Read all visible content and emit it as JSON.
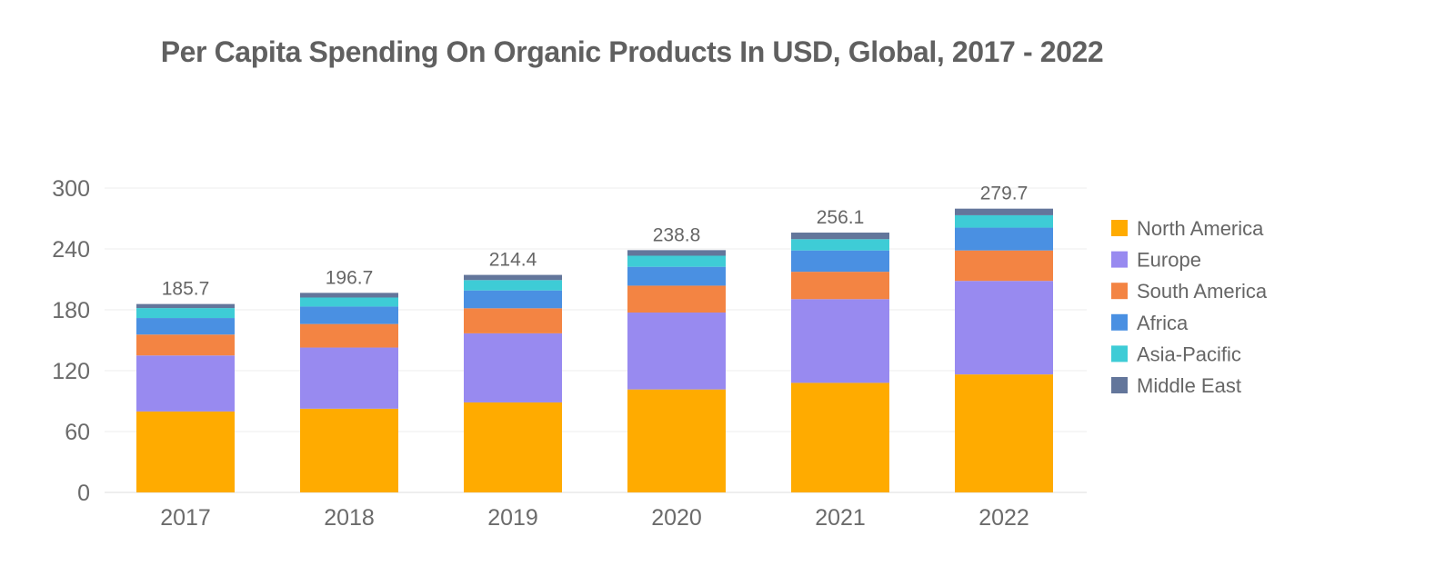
{
  "chart_data": {
    "type": "bar",
    "stacked": true,
    "title": "Per Capita Spending On Organic Products In USD, Global, 2017 - 2022",
    "xlabel": "",
    "ylabel": "",
    "ylim": [
      0,
      300
    ],
    "yticks": [
      "0",
      "60",
      "120",
      "180",
      "240",
      "300"
    ],
    "grid": true,
    "legend_position": "right",
    "categories": [
      "2017",
      "2018",
      "2019",
      "2020",
      "2021",
      "2022"
    ],
    "totals": [
      "185.7",
      "196.7",
      "214.4",
      "238.8",
      "256.1",
      "279.7"
    ],
    "series": [
      {
        "name": "North America",
        "color": "#FFAB00",
        "values": [
          79.8,
          82.5,
          88.7,
          101.5,
          108.0,
          116.3
        ]
      },
      {
        "name": "Europe",
        "color": "#988AF0",
        "values": [
          55.2,
          60.3,
          68.1,
          75.8,
          82.5,
          92.2
        ]
      },
      {
        "name": "South America",
        "color": "#F38443",
        "values": [
          20.6,
          23.2,
          24.7,
          26.5,
          27.0,
          30.0
        ]
      },
      {
        "name": "Africa",
        "color": "#4A90E2",
        "values": [
          16.3,
          17.2,
          17.6,
          18.6,
          21.0,
          22.5
        ]
      },
      {
        "name": "Asia-Pacific",
        "color": "#3ECCD6",
        "values": [
          9.8,
          8.9,
          10.2,
          10.9,
          11.1,
          12.2
        ]
      },
      {
        "name": "Middle East",
        "color": "#63769B",
        "values": [
          4.0,
          4.6,
          5.1,
          5.5,
          6.5,
          6.5
        ]
      }
    ]
  }
}
